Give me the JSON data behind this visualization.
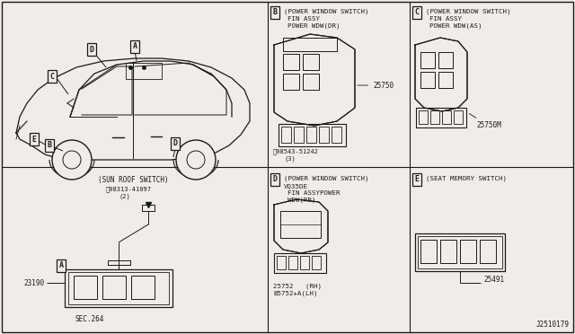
{
  "bg": "#f0ede8",
  "lc": "#1a1a1a",
  "tc": "#1a1a1a",
  "diagram_id": "J2510179",
  "B_title": "(POWER WINDOW SWITCH)",
  "B_sub1": "FIN ASSY",
  "B_sub2": "POWER WDW(DR)",
  "B_part1": "25750",
  "B_screw": "08543-51242",
  "B_screw2": "(3)",
  "C_title": "(POWER WINDOW SWITCH)",
  "C_sub1": "FIN ASSY",
  "C_sub2": "POWER WDW(AS)",
  "C_part1": "25750M",
  "A_title": "(SUN ROOF SWITCH)",
  "A_screw": "08313-41097",
  "A_screw2": "(2)",
  "A_part1": "23190",
  "A_sec": "SEC.264",
  "D_title": "(POWER WINDOW SWITCH)",
  "D_sub0": "VQ35DE",
  "D_sub1": "FIN ASSYPOWER",
  "D_sub2": "WDW(RR)",
  "D_part1": "25752   (RH)",
  "D_part2": "B5752+A(LH)",
  "E_title": "(SEAT MEMORY SWITCH)",
  "E_part1": "25491",
  "v1x": 298,
  "v2x": 456,
  "h1y": 186
}
